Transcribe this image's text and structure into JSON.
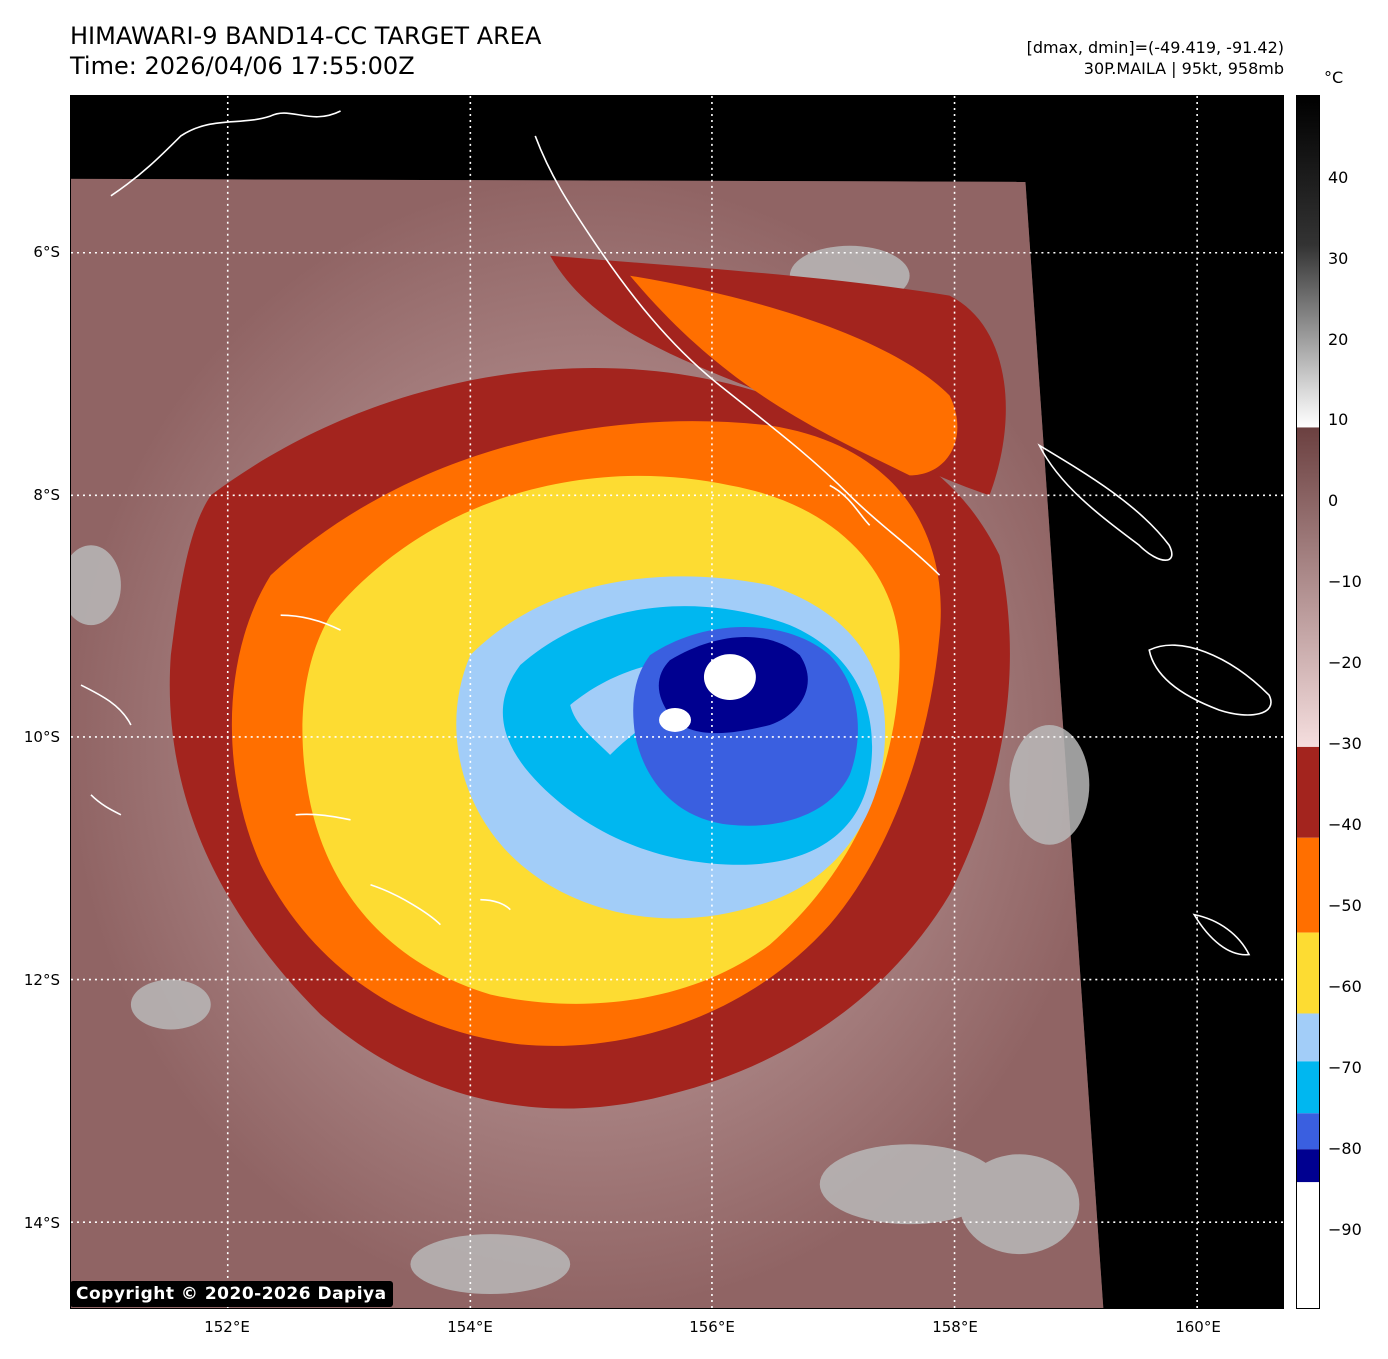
{
  "header": {
    "title": "HIMAWARI-9 BAND14-CC TARGET AREA",
    "time": "Time: 2026/04/06 17:55:00Z",
    "range": "[dmax, dmin]=(-49.419, -91.42)",
    "storm": "30P.MAILA | 95kt, 958mb"
  },
  "axes": {
    "lat_labels": [
      "6°S",
      "8°S",
      "10°S",
      "12°S",
      "14°S"
    ],
    "lon_labels": [
      "152°E",
      "154°E",
      "156°E",
      "158°E",
      "160°E"
    ]
  },
  "colorbar": {
    "unit": "°C",
    "tick_labels": [
      "40",
      "30",
      "20",
      "10",
      "0",
      "−10",
      "−20",
      "−30",
      "−40",
      "−50",
      "−60",
      "−70",
      "−80",
      "−90"
    ],
    "colors": {
      "warm_gray_top": "#000000",
      "brown": "#6b4040",
      "pink": "#f0d8d8",
      "dark_red": "#a3241e",
      "orange": "#ff6f00",
      "yellow": "#fddc32",
      "light_blue": "#a2cdf8",
      "cyan": "#00b7f0",
      "royal_blue": "#3a5fe0",
      "navy": "#000090",
      "white": "#ffffff"
    }
  },
  "copyright": "Copyright © 2020-2026 Dapiya"
}
